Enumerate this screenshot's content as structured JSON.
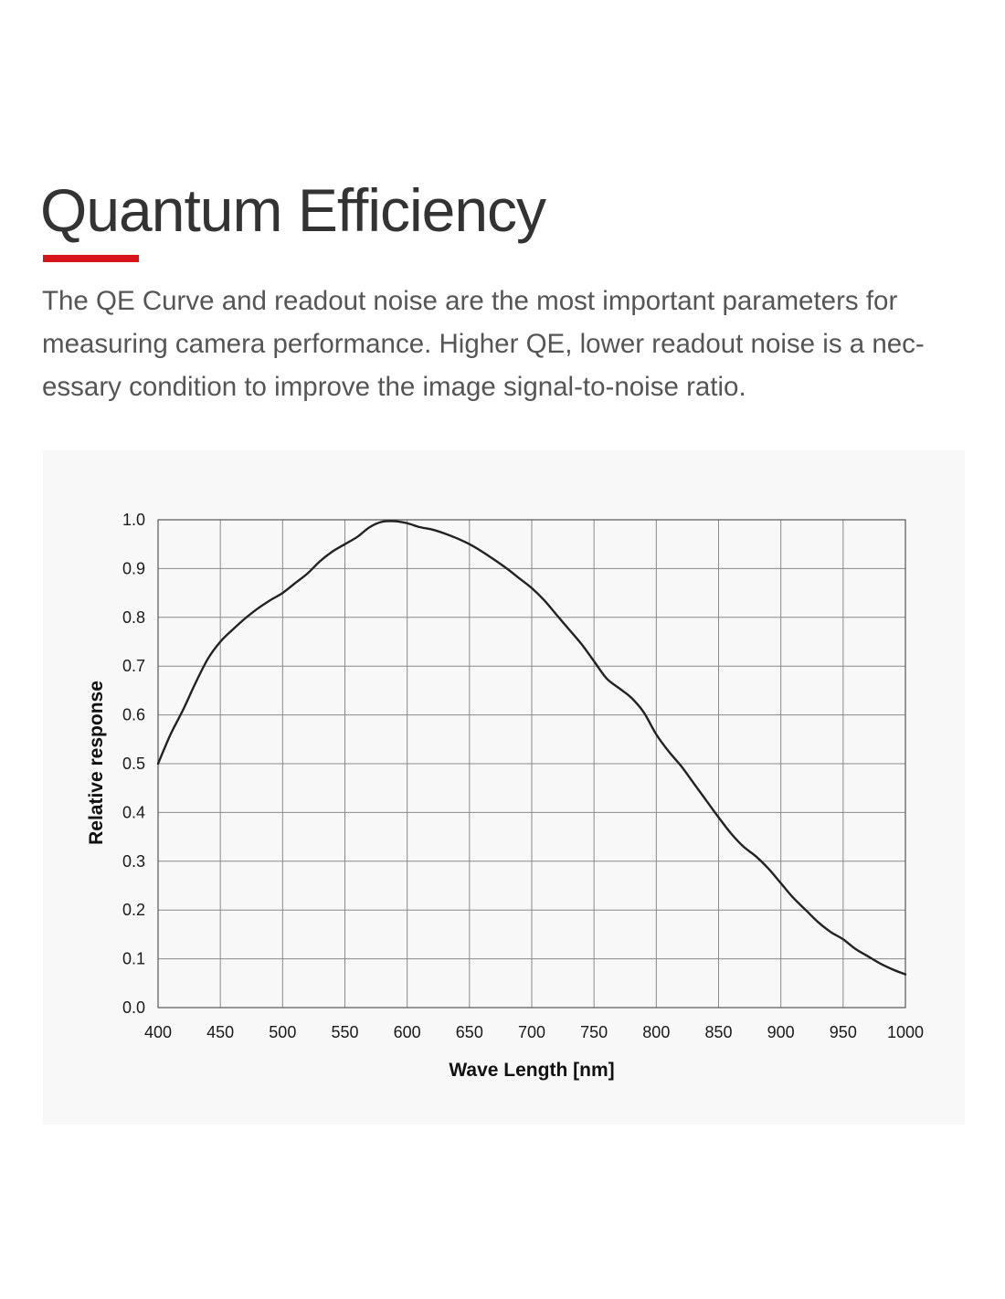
{
  "page": {
    "title": "Quantum Efficiency",
    "accent_color": "#d7141a",
    "description": "The QE Curve and readout noise are the most important parameters for measuring camera performance. Higher QE, lower readout noise is a nec-essary condition to improve the image signal-to-noise ratio."
  },
  "chart_data": {
    "type": "line",
    "title": "",
    "xlabel": "Wave Length [nm]",
    "ylabel": "Relative response",
    "xlim": [
      400,
      1000
    ],
    "ylim": [
      0.0,
      1.0
    ],
    "x_ticks": [
      400,
      450,
      500,
      550,
      600,
      650,
      700,
      750,
      800,
      850,
      900,
      950,
      1000
    ],
    "y_ticks": [
      "0.0",
      "0.1",
      "0.2",
      "0.3",
      "0.4",
      "0.5",
      "0.6",
      "0.7",
      "0.8",
      "0.9",
      "1.0"
    ],
    "grid": true,
    "legend": "none",
    "line_color": "#222222",
    "series": [
      {
        "x": [
          400,
          410,
          420,
          430,
          440,
          450,
          460,
          470,
          480,
          490,
          500,
          510,
          520,
          530,
          540,
          550,
          560,
          570,
          580,
          590,
          600,
          610,
          620,
          630,
          640,
          650,
          660,
          670,
          680,
          690,
          700,
          710,
          720,
          730,
          740,
          750,
          760,
          770,
          780,
          790,
          800,
          810,
          820,
          830,
          840,
          850,
          860,
          870,
          880,
          890,
          900,
          910,
          920,
          930,
          940,
          950,
          960,
          970,
          980,
          990,
          1000
        ],
        "values": [
          0.5,
          0.56,
          0.61,
          0.665,
          0.715,
          0.75,
          0.775,
          0.798,
          0.818,
          0.835,
          0.85,
          0.87,
          0.89,
          0.915,
          0.935,
          0.95,
          0.965,
          0.985,
          0.996,
          0.997,
          0.993,
          0.985,
          0.98,
          0.972,
          0.962,
          0.95,
          0.935,
          0.918,
          0.9,
          0.88,
          0.86,
          0.835,
          0.805,
          0.775,
          0.745,
          0.71,
          0.675,
          0.655,
          0.635,
          0.605,
          0.56,
          0.525,
          0.495,
          0.46,
          0.425,
          0.39,
          0.357,
          0.33,
          0.31,
          0.285,
          0.255,
          0.225,
          0.2,
          0.175,
          0.155,
          0.14,
          0.12,
          0.105,
          0.09,
          0.078,
          0.068
        ]
      }
    ]
  }
}
